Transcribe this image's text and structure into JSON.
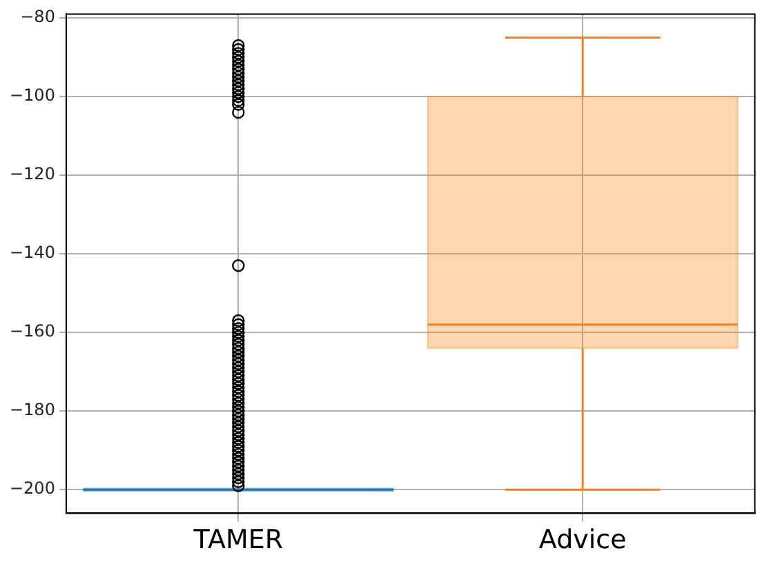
{
  "chart_data": {
    "type": "box",
    "categories": [
      "TAMER",
      "Advice"
    ],
    "colors": [
      "#1f77b4",
      "#ff7f0e"
    ],
    "boxes": [
      {
        "low": -200,
        "q1": -200,
        "median": -200,
        "q3": -200,
        "high": -200,
        "outliers": [
          -87,
          -88,
          -89,
          -90,
          -91,
          -92,
          -93,
          -94,
          -95,
          -96,
          -97,
          -98,
          -99,
          -100,
          -101,
          -102,
          -104,
          -143,
          -157,
          -158,
          -159,
          -160,
          -161,
          -162,
          -163,
          -164,
          -165,
          -166,
          -167,
          -168,
          -169,
          -170,
          -171,
          -172,
          -173,
          -174,
          -175,
          -176,
          -177,
          -178,
          -179,
          -180,
          -181,
          -182,
          -183,
          -184,
          -185,
          -186,
          -187,
          -188,
          -189,
          -190,
          -191,
          -192,
          -193,
          -194,
          -195,
          -196,
          -197,
          -198,
          -199
        ]
      },
      {
        "low": -200,
        "q1": -164,
        "median": -158,
        "q3": -100,
        "high": -85
      }
    ],
    "ylim": [
      -206,
      -79
    ],
    "yticks": [
      -80,
      -100,
      -120,
      -140,
      -160,
      -180,
      -200
    ],
    "grid": true
  }
}
